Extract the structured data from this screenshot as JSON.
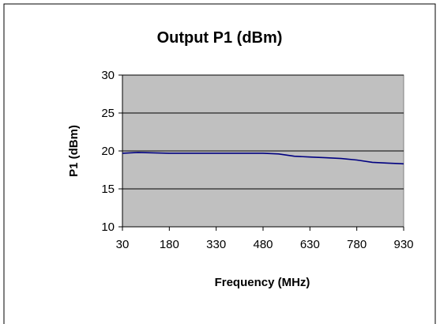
{
  "chart_data": {
    "type": "line",
    "title": "Output P1 (dBm)",
    "xlabel": "Frequency (MHz)",
    "ylabel": "P1 (dBm)",
    "x_ticks": [
      "30",
      "180",
      "330",
      "480",
      "630",
      "780",
      "930"
    ],
    "y_ticks": [
      "10",
      "15",
      "20",
      "25",
      "30"
    ],
    "xlim": [
      30,
      930
    ],
    "ylim": [
      10,
      30
    ],
    "grid": "horizontal",
    "legend": "none",
    "plot_background": "#c0c0c0",
    "line_color": "#000080",
    "series": [
      {
        "x": [
          30,
          80,
          130,
          180,
          230,
          280,
          330,
          380,
          430,
          480,
          530,
          580,
          630,
          680,
          730,
          780,
          830,
          880,
          930
        ],
        "y": [
          19.7,
          19.8,
          19.75,
          19.7,
          19.7,
          19.7,
          19.7,
          19.7,
          19.7,
          19.7,
          19.6,
          19.3,
          19.2,
          19.1,
          19.0,
          18.8,
          18.5,
          18.4,
          18.3
        ]
      }
    ]
  }
}
